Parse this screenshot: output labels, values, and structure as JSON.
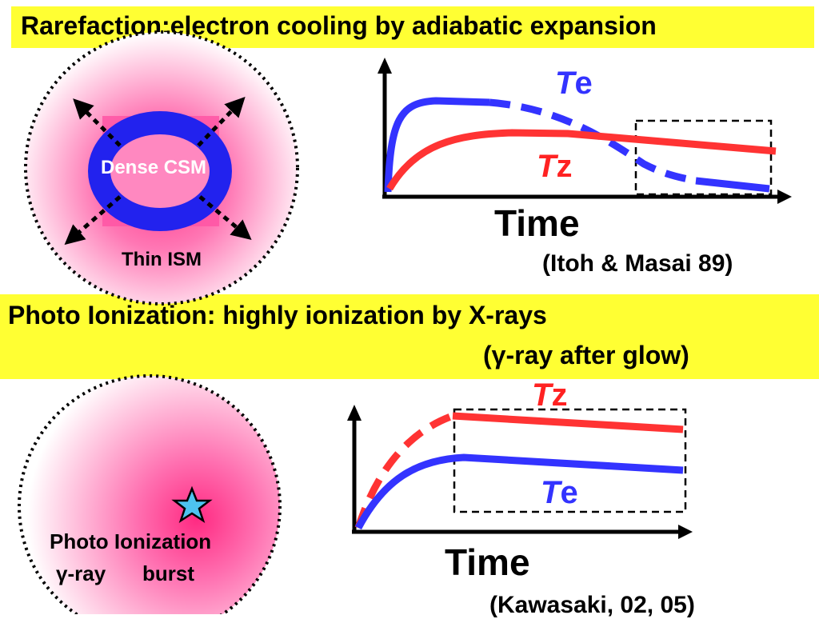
{
  "section1": {
    "title": "Rarefaction:electron cooling by adiabatic expansion",
    "csm_label": "Dense CSM",
    "ism_label": "Thin ISM",
    "te_label_T": "T",
    "te_label_sub": "e",
    "tz_label_T": "T",
    "tz_label_sub": "z",
    "time_label": "Time",
    "citation": "(Itoh & Masai 89)"
  },
  "section2": {
    "title": "Photo Ionization: highly ionization by X-rays",
    "subtitle": "(γ-ray after glow)",
    "photo_label": "Photo Ionization",
    "gamma_label": "γ-ray",
    "burst_label": "burst",
    "tz_label_T": "T",
    "tz_label_sub": "z",
    "te_label_T": "T",
    "te_label_sub": "e",
    "time_label": "Time",
    "citation": "(Kawasaki, 02, 05)"
  },
  "colors": {
    "banner": "#ffff33",
    "te_curve": "#3333ff",
    "tz_curve": "#ff3333",
    "pink": "#ff66aa",
    "star": "#4dc3f0"
  }
}
